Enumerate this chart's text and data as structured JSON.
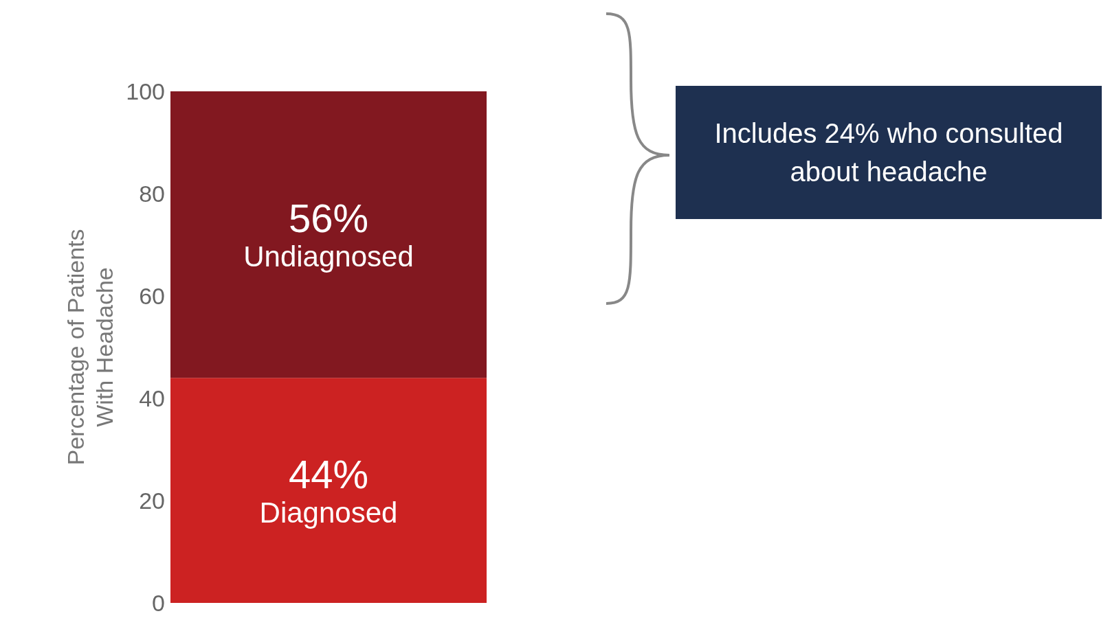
{
  "chart_data": {
    "type": "bar",
    "stacked": true,
    "ylabel": "Percentage of Patients\nWith Headache",
    "categories": [
      null
    ],
    "series": [
      {
        "name": "Diagnosed",
        "color": "#cc2222",
        "values": [
          44
        ],
        "value_labels": [
          "44%"
        ]
      },
      {
        "name": "Undiagnosed",
        "color": "#821820",
        "values": [
          56
        ],
        "value_labels": [
          "56%"
        ]
      }
    ],
    "ylim": [
      0,
      100
    ],
    "yticks": [
      0,
      20,
      40,
      60,
      80,
      100
    ],
    "grid": false,
    "legend": false,
    "annotations": [
      "Includes 24% who consulted about headache"
    ]
  }
}
